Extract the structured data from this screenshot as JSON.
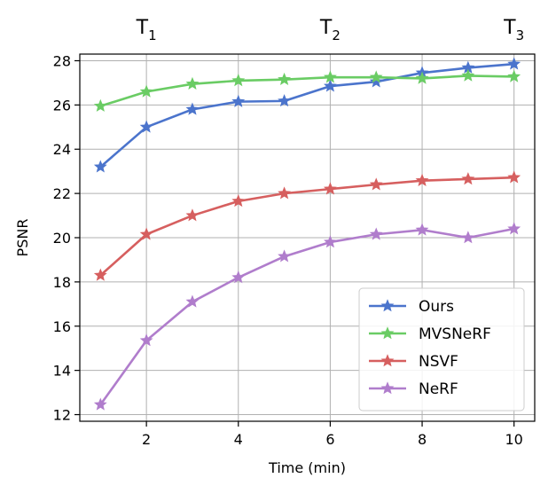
{
  "chart_data": {
    "type": "line",
    "xlabel": "Time (min)",
    "ylabel": "PSNR",
    "xlim": [
      0.55,
      10.45
    ],
    "ylim": [
      11.7,
      28.3
    ],
    "xticks": [
      2,
      4,
      6,
      8,
      10
    ],
    "yticks": [
      12,
      14,
      16,
      18,
      20,
      22,
      24,
      26,
      28
    ],
    "grid": true,
    "legend_position": "lower-right",
    "top_annotations": [
      {
        "x": 2,
        "base": "T",
        "sub": "1"
      },
      {
        "x": 6,
        "base": "T",
        "sub": "2"
      },
      {
        "x": 10,
        "base": "T",
        "sub": "3"
      }
    ],
    "x": [
      1,
      2,
      3,
      4,
      5,
      6,
      7,
      8,
      9,
      10
    ],
    "series": [
      {
        "name": "Ours",
        "color": "#4b74cc",
        "marker": "star",
        "values": [
          23.2,
          25.0,
          25.8,
          26.15,
          26.18,
          26.85,
          27.05,
          27.45,
          27.68,
          27.85
        ]
      },
      {
        "name": "MVSNeRF",
        "color": "#6acc64",
        "marker": "star",
        "values": [
          25.95,
          26.6,
          26.95,
          27.1,
          27.15,
          27.25,
          27.25,
          27.2,
          27.32,
          27.28
        ]
      },
      {
        "name": "NSVF",
        "color": "#d65f5f",
        "marker": "star",
        "values": [
          18.3,
          20.15,
          21.0,
          21.65,
          22.0,
          22.2,
          22.4,
          22.58,
          22.65,
          22.72
        ]
      },
      {
        "name": "NeRF",
        "color": "#b07dcc",
        "marker": "star",
        "values": [
          12.45,
          15.35,
          17.1,
          18.2,
          19.15,
          19.8,
          20.15,
          20.35,
          20.0,
          20.4
        ]
      }
    ]
  }
}
